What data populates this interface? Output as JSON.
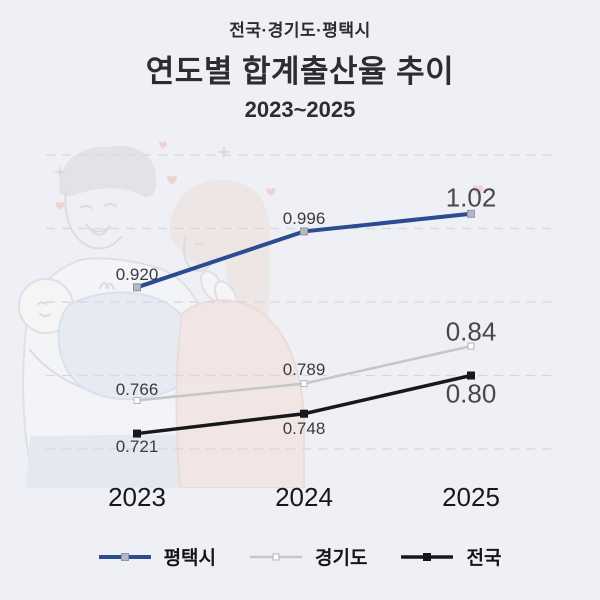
{
  "chart_data": {
    "type": "line",
    "subtitle": "전국·경기도·평택시",
    "title": "연도별 합계출산율 추이",
    "period": "2023~2025",
    "x_labels": [
      "2023",
      "2024",
      "2025"
    ],
    "ylim": [
      0.7,
      1.1
    ],
    "grid": "horizontal-dashed",
    "legend_position": "bottom",
    "series": [
      {
        "name": "평택시",
        "color": "#2c4b91",
        "values": [
          0.92,
          0.996,
          1.02
        ],
        "point_labels": [
          "0.920",
          "0.996",
          "1.02"
        ]
      },
      {
        "name": "경기도",
        "color": "#c5c6ca",
        "values": [
          0.766,
          0.789,
          0.84
        ],
        "point_labels": [
          "0.766",
          "0.789",
          "0.84"
        ]
      },
      {
        "name": "전국",
        "color": "#17181b",
        "values": [
          0.721,
          0.748,
          0.8
        ],
        "point_labels": [
          "0.721",
          "0.748",
          "0.80"
        ]
      }
    ]
  },
  "decor": {
    "illustration": "family-holding-baby-line-art",
    "heart_color": "#f0cbca",
    "sparkle_color": "#d6d7dd"
  },
  "colors": {
    "background": "#eff0f5",
    "grid": "#d6d7dd",
    "title": "#2b2d33",
    "value_label_small": "#3a3b41",
    "value_label_big": "#47484e",
    "axis_label": "#17181b"
  }
}
